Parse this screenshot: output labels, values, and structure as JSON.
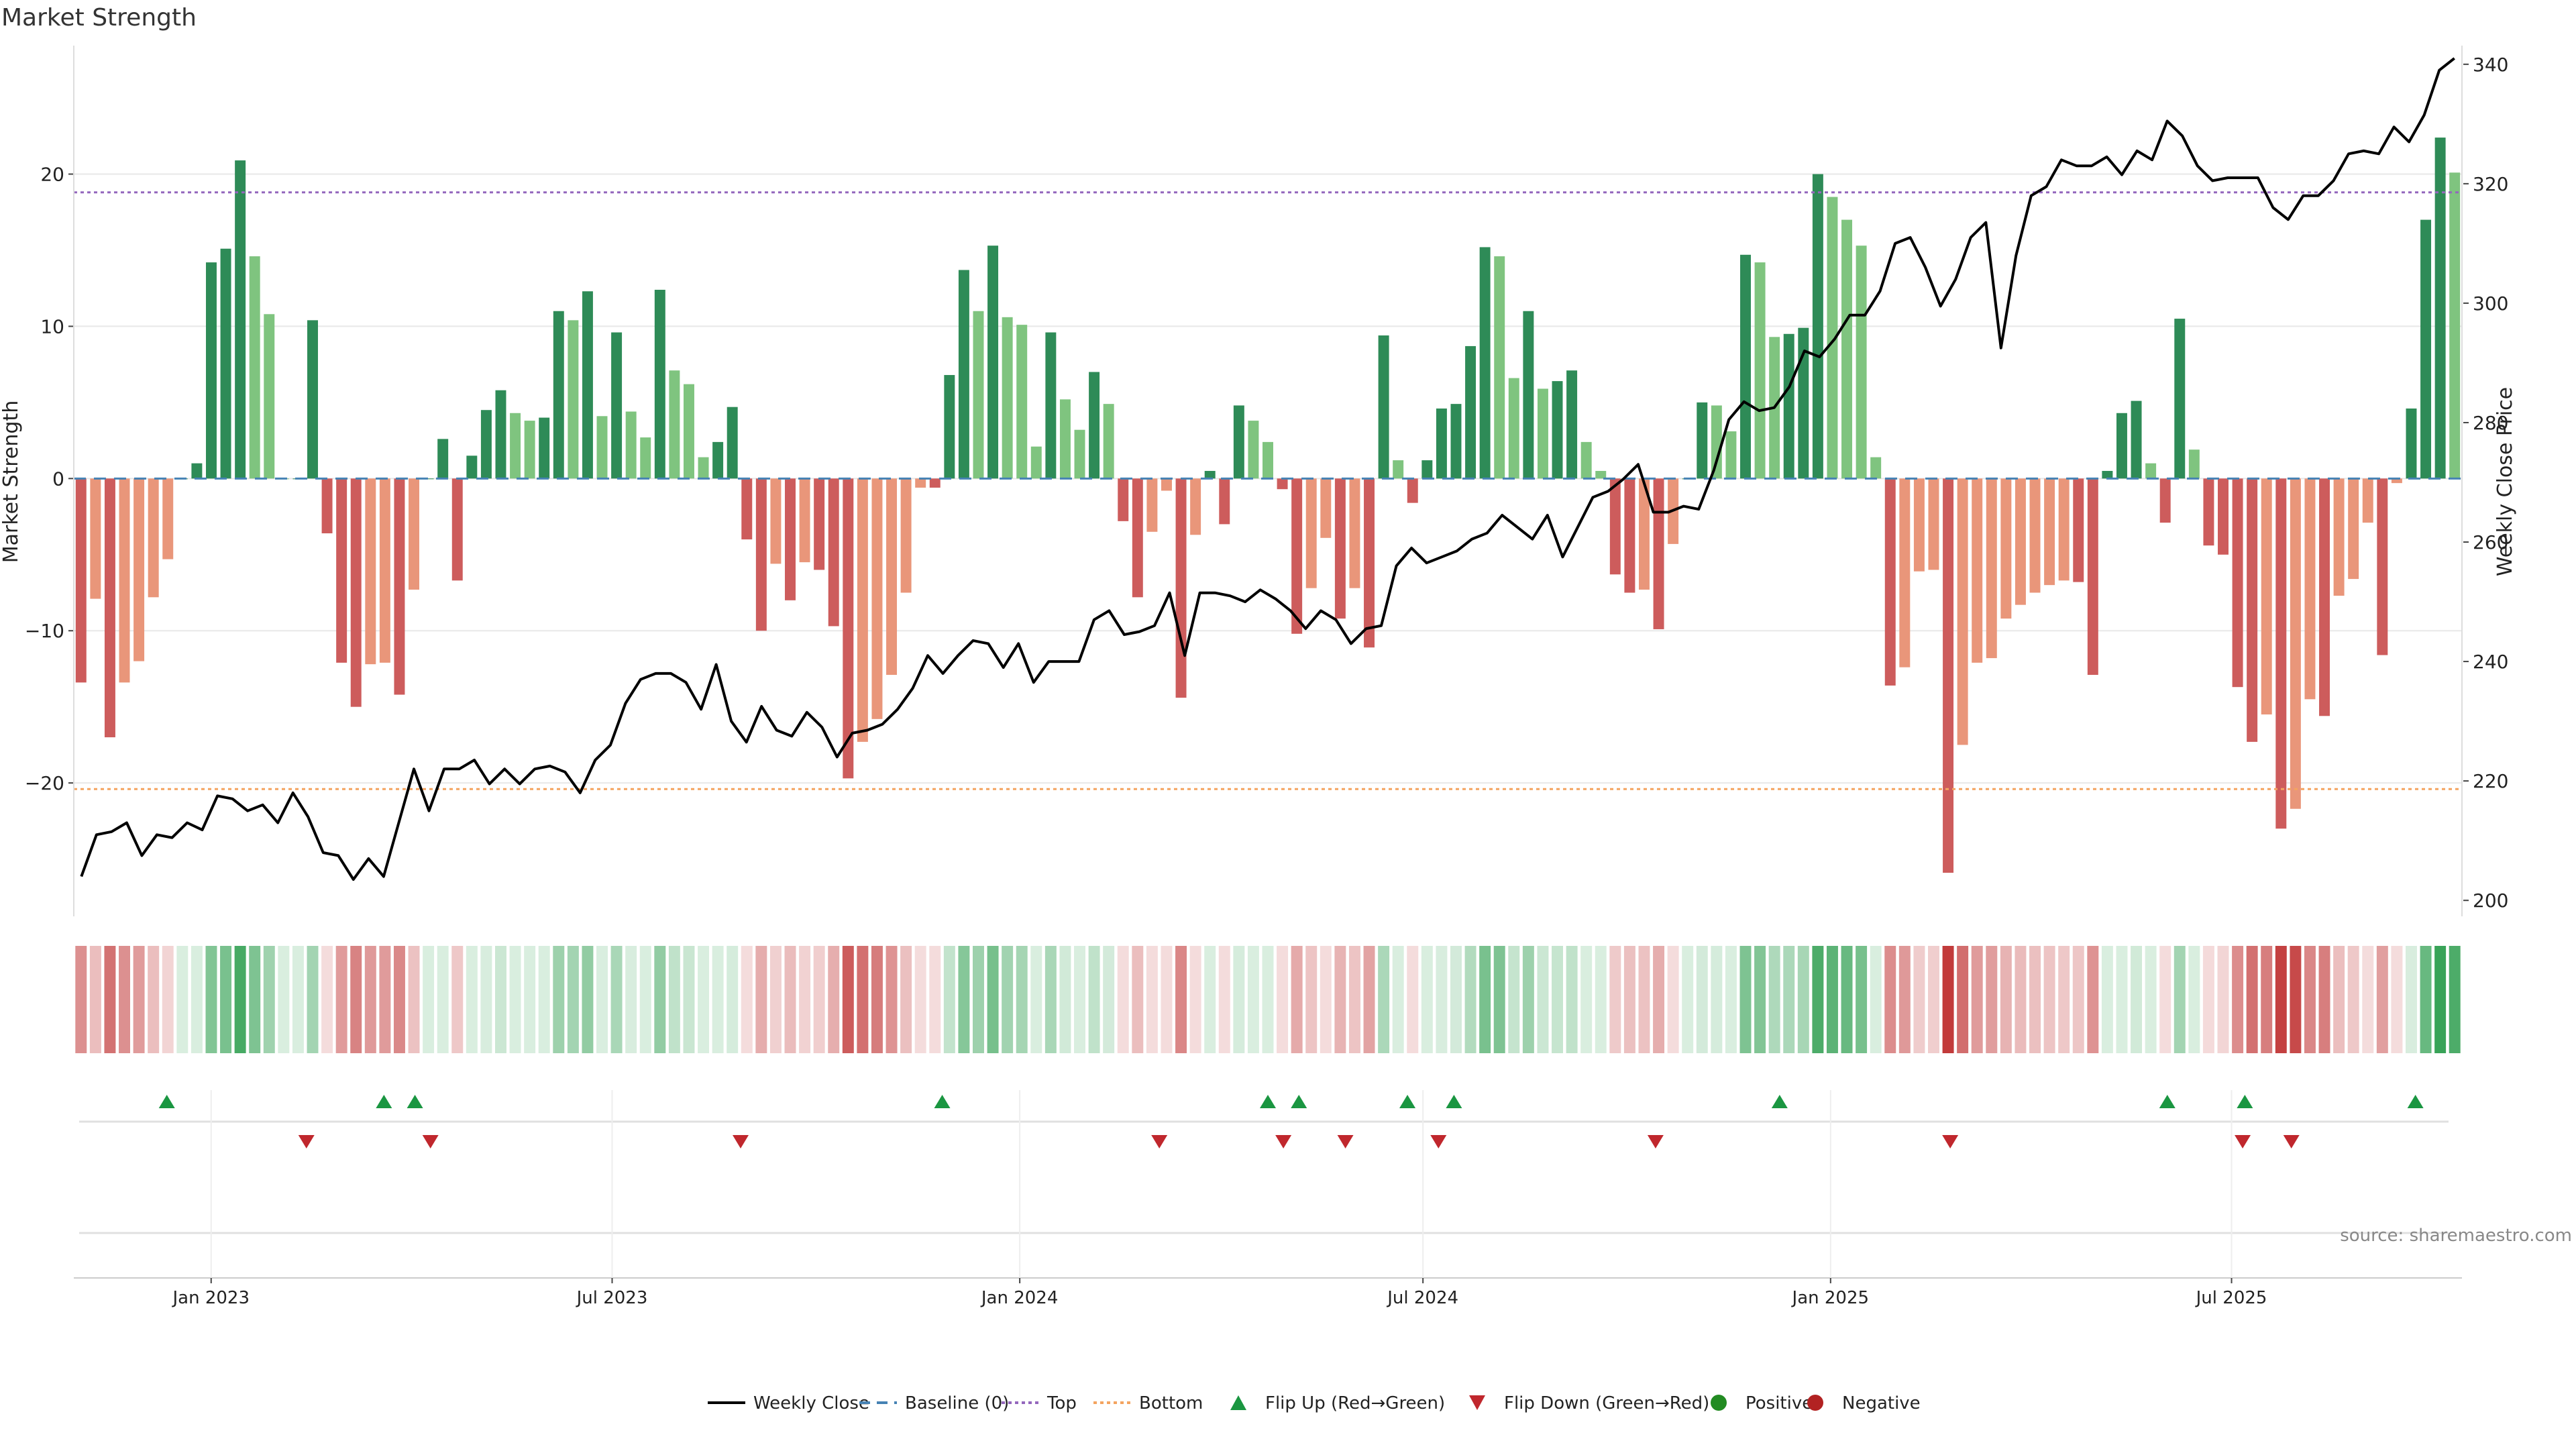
{
  "title": "Market Strength",
  "source": "source: sharemaestro.com",
  "colors": {
    "strong_green": "#2e8b57",
    "light_green": "#7fc47f",
    "strong_red": "#cd5c5c",
    "light_red": "#e9967a",
    "price_line": "#000000",
    "baseline": "#4682b4",
    "top": "#9467bd",
    "bottom": "#f4a460",
    "flip_up": "#1a9641",
    "flip_down": "#c0272d",
    "positive": "#228b22",
    "negative": "#b22222",
    "grid": "#e8e8e8",
    "axis_text": "#222222",
    "source_text": "#888888"
  },
  "legend": [
    {
      "label": "Weekly Close",
      "kind": "line",
      "color": "#000000"
    },
    {
      "label": "Baseline (0)",
      "kind": "dash",
      "color": "#4682b4"
    },
    {
      "label": "Top",
      "kind": "dot",
      "color": "#9467bd"
    },
    {
      "label": "Bottom",
      "kind": "dot",
      "color": "#f4a460"
    },
    {
      "label": "Flip Up (Red→Green)",
      "kind": "tri-up",
      "color": "#1a9641"
    },
    {
      "label": "Flip Down (Green→Red)",
      "kind": "tri-down",
      "color": "#c0272d"
    },
    {
      "label": "Positive",
      "kind": "dot-circle",
      "color": "#228b22"
    },
    {
      "label": "Negative",
      "kind": "dot-circle",
      "color": "#b22222"
    }
  ],
  "chart_data": {
    "type": "bar",
    "title": "Market Strength",
    "ylabel": "Market Strength",
    "y2label": "Weekly Close Price",
    "ylim": [
      -28.5,
      28
    ],
    "y2lim": [
      198,
      342
    ],
    "yticks": [
      -20,
      -10,
      0,
      10,
      20
    ],
    "y2ticks": [
      200,
      220,
      240,
      260,
      280,
      300,
      320,
      340
    ],
    "x_start": "2022-10-31",
    "x_end": "2025-10-13",
    "x_tick_labels": [
      {
        "date": "2023-01-01",
        "label": "Jan 2023"
      },
      {
        "date": "2023-07-01",
        "label": "Jul 2023"
      },
      {
        "date": "2024-01-01",
        "label": "Jan 2024"
      },
      {
        "date": "2024-07-01",
        "label": "Jul 2024"
      },
      {
        "date": "2025-01-01",
        "label": "Jan 2025"
      },
      {
        "date": "2025-07-01",
        "label": "Jul 2025"
      }
    ],
    "top_threshold": 18.8,
    "bottom_threshold": -20.4,
    "baseline": 0,
    "grid": true,
    "legend_position": "bottom",
    "weekly_strength": [
      -13.4,
      -7.9,
      -17,
      -13.4,
      -12,
      -7.8,
      -5.3,
      0,
      1,
      14.2,
      15.1,
      20.9,
      14.6,
      10.8,
      0,
      0,
      10.4,
      -3.6,
      -12.1,
      -15,
      -12.2,
      -12.1,
      -14.2,
      -7.3,
      0,
      2.6,
      -6.7,
      1.5,
      4.5,
      5.8,
      4.3,
      3.8,
      4,
      11,
      10.4,
      12.3,
      4.1,
      9.6,
      4.4,
      2.7,
      12.4,
      7.1,
      6.2,
      1.4,
      2.4,
      4.7,
      -4,
      -10,
      -5.6,
      -8,
      -5.5,
      -6,
      -9.7,
      -19.7,
      -17.3,
      -15.8,
      -12.9,
      -7.5,
      -0.6,
      -0.6,
      6.8,
      13.7,
      11,
      15.3,
      10.6,
      10.1,
      2.1,
      9.6,
      5.2,
      3.2,
      7,
      4.9,
      -2.8,
      -7.8,
      -3.5,
      -0.8,
      -14.4,
      -3.7,
      0.5,
      -3,
      4.8,
      3.8,
      2.4,
      -0.7,
      -10.2,
      -7.2,
      -3.9,
      -9.2,
      -7.2,
      -11.1,
      9.4,
      1.2,
      -1.6,
      1.2,
      4.6,
      4.9,
      8.7,
      15.2,
      14.6,
      6.6,
      11,
      5.9,
      6.4,
      7.1,
      2.4,
      0.5,
      -6.3,
      -7.5,
      -7.3,
      -9.9,
      -4.3,
      0,
      5,
      4.8,
      3.1,
      14.7,
      14.2,
      9.3,
      9.5,
      9.9,
      20,
      18.5,
      17,
      15.3,
      1.4,
      -13.6,
      -12.4,
      -6.1,
      -6,
      -25.9,
      -17.5,
      -12.1,
      -11.8,
      -9.2,
      -8.3,
      -7.5,
      -7,
      -6.7,
      -6.8,
      -12.9,
      0.5,
      4.3,
      5.1,
      1,
      -2.9,
      10.5,
      1.9,
      -4.4,
      -5,
      -13.7,
      -17.3,
      -15.5,
      -23,
      -21.7,
      -14.5,
      -15.6,
      -7.7,
      -6.6,
      -2.9,
      -11.6,
      -0.3,
      4.6,
      17,
      22.4,
      20.1
    ],
    "weekly_close": [
      204,
      211,
      211.5,
      213,
      207.5,
      211,
      210.5,
      213,
      211.8,
      217.5,
      217,
      215,
      216,
      213,
      218,
      214,
      208,
      207.5,
      203.5,
      207,
      204,
      213,
      222,
      215,
      222,
      222,
      223.5,
      219.5,
      222,
      219.5,
      222,
      222.5,
      221.5,
      218,
      223.5,
      226,
      233,
      237,
      238,
      238,
      236.5,
      232,
      239.5,
      230,
      226.5,
      232.5,
      228.5,
      227.5,
      231.5,
      229,
      224,
      228,
      228.5,
      229.5,
      232,
      235.5,
      241,
      238,
      241,
      243.5,
      243,
      239,
      243,
      236.5,
      240,
      240,
      240,
      247,
      248.5,
      244.5,
      245,
      246,
      251.5,
      241,
      251.5,
      251.5,
      251,
      250,
      252,
      250.5,
      248.5,
      245.5,
      248.5,
      247,
      243,
      245.5,
      246,
      256,
      259,
      256.5,
      257.5,
      258.5,
      260.5,
      261.5,
      264.5,
      262.5,
      260.5,
      264.5,
      257.5,
      262.5,
      267.5,
      268.5,
      270.5,
      273,
      265,
      265,
      266,
      265.5,
      272,
      280.5,
      283.5,
      282,
      282.5,
      286,
      292,
      291,
      294,
      298,
      298,
      302,
      310,
      311,
      306,
      299.5,
      304,
      311,
      313.5,
      292.5,
      308,
      318,
      319.5,
      324,
      323,
      323,
      324.5,
      321.5,
      325.5,
      324,
      330.5,
      328,
      323,
      320.5,
      321,
      321,
      321,
      316,
      314,
      318,
      318,
      320.5,
      325,
      325.5,
      325,
      329.5,
      327,
      331.5,
      339,
      341
    ],
    "flip_up_dates": [
      "2022-12-12",
      "2023-03-20",
      "2023-04-03",
      "2023-11-27",
      "2024-04-22",
      "2024-05-06",
      "2024-06-24",
      "2024-07-15",
      "2024-12-09",
      "2025-06-02",
      "2025-07-07",
      "2025-09-22"
    ],
    "flip_down_dates": [
      "2023-02-13",
      "2023-04-10",
      "2023-08-28",
      "2024-03-04",
      "2024-04-29",
      "2024-05-27",
      "2024-07-08",
      "2024-10-14",
      "2025-02-24",
      "2025-07-06",
      "2025-07-28"
    ]
  }
}
